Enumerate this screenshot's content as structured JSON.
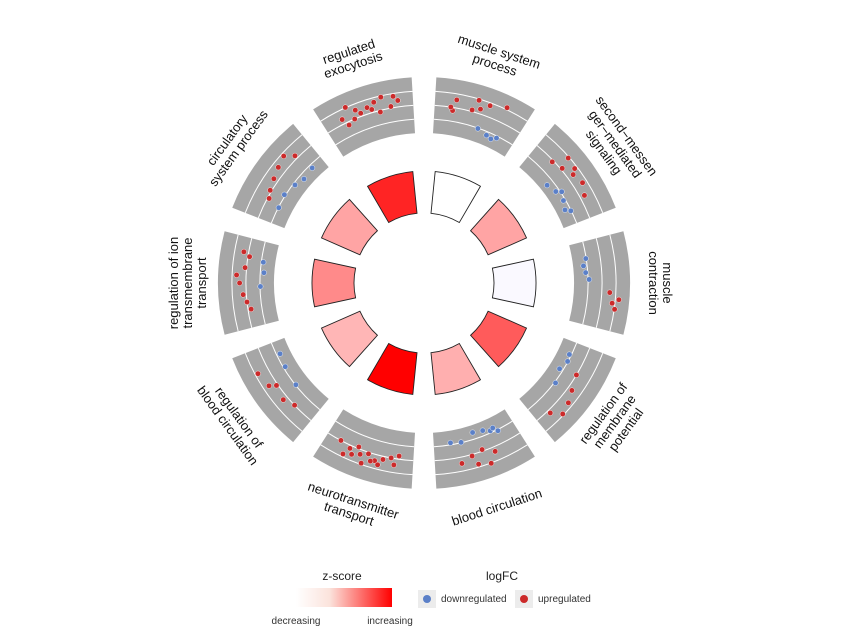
{
  "chart_data": {
    "type": "circular-go-plot",
    "terms": [
      {
        "label_lines": [
          "muscle system",
          "process"
        ],
        "zscore": 0.3,
        "points": [
          {
            "r": 0.3,
            "p": 0.15,
            "d": "up"
          },
          {
            "r": 0.5,
            "p": 0.12,
            "d": "up"
          },
          {
            "r": 0.6,
            "p": 0.4,
            "d": "up"
          },
          {
            "r": 0.8,
            "p": 0.5,
            "d": "up"
          },
          {
            "r": 1.0,
            "p": 0.18,
            "d": "up"
          },
          {
            "r": 1.2,
            "p": 0.6,
            "d": "up"
          },
          {
            "r": 1.3,
            "p": 0.45,
            "d": "up"
          },
          {
            "r": 1.5,
            "p": 0.8,
            "d": "up"
          },
          {
            "r": -0.4,
            "p": 0.55,
            "d": "down"
          },
          {
            "r": -0.6,
            "p": 0.7,
            "d": "down"
          },
          {
            "r": -0.7,
            "p": 0.78,
            "d": "down"
          },
          {
            "r": -0.5,
            "p": 0.85,
            "d": "down"
          }
        ]
      },
      {
        "label_lines": [
          "second−messen",
          "ger−mediated",
          "signaling"
        ],
        "zscore": 0.55,
        "points": [
          {
            "r": 0.4,
            "p": 0.2,
            "d": "up"
          },
          {
            "r": 0.6,
            "p": 0.35,
            "d": "up"
          },
          {
            "r": 0.9,
            "p": 0.5,
            "d": "up"
          },
          {
            "r": 1.1,
            "p": 0.65,
            "d": "up"
          },
          {
            "r": 1.3,
            "p": 0.3,
            "d": "up"
          },
          {
            "r": 1.2,
            "p": 0.45,
            "d": "up"
          },
          {
            "r": 0.8,
            "p": 0.8,
            "d": "up"
          },
          {
            "r": -0.3,
            "p": 0.6,
            "d": "down"
          },
          {
            "r": -0.5,
            "p": 0.72,
            "d": "down"
          },
          {
            "r": -0.7,
            "p": 0.85,
            "d": "down"
          },
          {
            "r": -0.6,
            "p": 0.55,
            "d": "down"
          },
          {
            "r": -0.4,
            "p": 0.9,
            "d": "down"
          },
          {
            "r": -0.8,
            "p": 0.4,
            "d": "down"
          }
        ]
      },
      {
        "label_lines": [
          "muscle",
          "contraction"
        ],
        "zscore": 0.25,
        "points": [
          {
            "r": 1.2,
            "p": 0.75,
            "d": "up"
          },
          {
            "r": 1.4,
            "p": 0.82,
            "d": "up"
          },
          {
            "r": 1.6,
            "p": 0.7,
            "d": "up"
          },
          {
            "r": 1.0,
            "p": 0.62,
            "d": "up"
          },
          {
            "r": -0.4,
            "p": 0.15,
            "d": "down"
          },
          {
            "r": -0.6,
            "p": 0.25,
            "d": "down"
          },
          {
            "r": -0.5,
            "p": 0.35,
            "d": "down"
          },
          {
            "r": -0.3,
            "p": 0.45,
            "d": "down"
          }
        ]
      },
      {
        "label_lines": [
          "regulation of",
          "membrane",
          "potential"
        ],
        "zscore": 0.75,
        "points": [
          {
            "r": 0.5,
            "p": 0.3,
            "d": "up"
          },
          {
            "r": 0.8,
            "p": 0.5,
            "d": "up"
          },
          {
            "r": 1.1,
            "p": 0.65,
            "d": "up"
          },
          {
            "r": 1.3,
            "p": 0.8,
            "d": "up"
          },
          {
            "r": 0.7,
            "p": 0.9,
            "d": "up"
          },
          {
            "r": -0.4,
            "p": 0.2,
            "d": "down"
          },
          {
            "r": -0.6,
            "p": 0.35,
            "d": "down"
          },
          {
            "r": -0.3,
            "p": 0.55,
            "d": "down"
          },
          {
            "r": -0.5,
            "p": 0.1,
            "d": "down"
          }
        ]
      },
      {
        "label_lines": [
          "blood circulation"
        ],
        "zscore": 0.52,
        "points": [
          {
            "r": 0.4,
            "p": 0.45,
            "d": "up"
          },
          {
            "r": 0.6,
            "p": 0.6,
            "d": "up"
          },
          {
            "r": 0.9,
            "p": 0.75,
            "d": "up"
          },
          {
            "r": 1.2,
            "p": 0.55,
            "d": "up"
          },
          {
            "r": 1.4,
            "p": 0.4,
            "d": "up"
          },
          {
            "r": 0.8,
            "p": 0.3,
            "d": "up"
          },
          {
            "r": -0.3,
            "p": 0.15,
            "d": "down"
          },
          {
            "r": -0.5,
            "p": 0.25,
            "d": "down"
          },
          {
            "r": -0.7,
            "p": 0.35,
            "d": "down"
          },
          {
            "r": -0.6,
            "p": 0.2,
            "d": "down"
          },
          {
            "r": -0.4,
            "p": 0.7,
            "d": "down"
          },
          {
            "r": -0.8,
            "p": 0.5,
            "d": "down"
          },
          {
            "r": -0.5,
            "p": 0.85,
            "d": "down"
          }
        ]
      },
      {
        "label_lines": [
          "neurotransmitter",
          "transport"
        ],
        "zscore": 1.0,
        "points": [
          {
            "r": 0.3,
            "p": 0.1,
            "d": "up"
          },
          {
            "r": 0.5,
            "p": 0.2,
            "d": "up"
          },
          {
            "r": 0.7,
            "p": 0.3,
            "d": "up"
          },
          {
            "r": 0.9,
            "p": 0.4,
            "d": "up"
          },
          {
            "r": 0.6,
            "p": 0.5,
            "d": "up"
          },
          {
            "r": 0.8,
            "p": 0.6,
            "d": "up"
          },
          {
            "r": 1.0,
            "p": 0.7,
            "d": "up"
          },
          {
            "r": 1.2,
            "p": 0.8,
            "d": "up"
          },
          {
            "r": 0.4,
            "p": 0.65,
            "d": "up"
          },
          {
            "r": 1.1,
            "p": 0.35,
            "d": "up"
          },
          {
            "r": 1.3,
            "p": 0.55,
            "d": "up"
          },
          {
            "r": 0.5,
            "p": 0.9,
            "d": "up"
          },
          {
            "r": 0.7,
            "p": 0.75,
            "d": "up"
          },
          {
            "r": 0.9,
            "p": 0.15,
            "d": "up"
          },
          {
            "r": 1.0,
            "p": 0.45,
            "d": "up"
          }
        ]
      },
      {
        "label_lines": [
          "regulation of",
          "blood circulation"
        ],
        "zscore": 0.5,
        "points": [
          {
            "r": 0.5,
            "p": 0.2,
            "d": "up"
          },
          {
            "r": 0.8,
            "p": 0.35,
            "d": "up"
          },
          {
            "r": 1.0,
            "p": 0.6,
            "d": "up"
          },
          {
            "r": 1.2,
            "p": 0.8,
            "d": "up"
          },
          {
            "r": 0.6,
            "p": 0.55,
            "d": "up"
          },
          {
            "r": -0.4,
            "p": 0.4,
            "d": "down"
          },
          {
            "r": -0.5,
            "p": 0.7,
            "d": "down"
          },
          {
            "r": -0.6,
            "p": 0.9,
            "d": "down"
          }
        ]
      },
      {
        "label_lines": [
          "regulation of ion",
          "transmembrane",
          "transport"
        ],
        "zscore": 0.62,
        "points": [
          {
            "r": 0.3,
            "p": 0.15,
            "d": "up"
          },
          {
            "r": 0.5,
            "p": 0.25,
            "d": "up"
          },
          {
            "r": 0.7,
            "p": 0.35,
            "d": "up"
          },
          {
            "r": 0.9,
            "p": 0.5,
            "d": "up"
          },
          {
            "r": 1.1,
            "p": 0.6,
            "d": "up"
          },
          {
            "r": 0.6,
            "p": 0.7,
            "d": "up"
          },
          {
            "r": 0.4,
            "p": 0.85,
            "d": "up"
          },
          {
            "r": 0.8,
            "p": 0.9,
            "d": "up"
          },
          {
            "r": -0.4,
            "p": 0.45,
            "d": "down"
          },
          {
            "r": -0.6,
            "p": 0.65,
            "d": "down"
          },
          {
            "r": -0.5,
            "p": 0.8,
            "d": "down"
          }
        ]
      },
      {
        "label_lines": [
          "circulatory",
          "system process"
        ],
        "zscore": 0.55,
        "points": [
          {
            "r": 0.4,
            "p": 0.2,
            "d": "up"
          },
          {
            "r": 0.6,
            "p": 0.3,
            "d": "up"
          },
          {
            "r": 0.8,
            "p": 0.45,
            "d": "up"
          },
          {
            "r": 1.0,
            "p": 0.6,
            "d": "up"
          },
          {
            "r": 1.2,
            "p": 0.75,
            "d": "up"
          },
          {
            "r": 0.7,
            "p": 0.85,
            "d": "up"
          },
          {
            "r": -0.3,
            "p": 0.35,
            "d": "down"
          },
          {
            "r": -0.5,
            "p": 0.55,
            "d": "down"
          },
          {
            "r": -0.7,
            "p": 0.7,
            "d": "down"
          },
          {
            "r": -0.4,
            "p": 0.15,
            "d": "down"
          },
          {
            "r": -0.6,
            "p": 0.9,
            "d": "down"
          }
        ]
      },
      {
        "label_lines": [
          "regulated",
          "exocytosis"
        ],
        "zscore": 0.9,
        "points": [
          {
            "r": 0.3,
            "p": 0.2,
            "d": "up"
          },
          {
            "r": 0.5,
            "p": 0.3,
            "d": "up"
          },
          {
            "r": 0.7,
            "p": 0.4,
            "d": "up"
          },
          {
            "r": 0.9,
            "p": 0.5,
            "d": "up"
          },
          {
            "r": 1.1,
            "p": 0.6,
            "d": "up"
          },
          {
            "r": 1.3,
            "p": 0.7,
            "d": "up"
          },
          {
            "r": 0.6,
            "p": 0.8,
            "d": "up"
          },
          {
            "r": 0.8,
            "p": 0.15,
            "d": "up"
          },
          {
            "r": 1.0,
            "p": 0.35,
            "d": "up"
          },
          {
            "r": 1.2,
            "p": 0.85,
            "d": "up"
          },
          {
            "r": 0.4,
            "p": 0.65,
            "d": "up"
          },
          {
            "r": 0.9,
            "p": 0.9,
            "d": "up"
          },
          {
            "r": 1.4,
            "p": 0.25,
            "d": "up"
          },
          {
            "r": 0.7,
            "p": 0.55,
            "d": "up"
          }
        ]
      }
    ],
    "legend": {
      "zscore_title": "z-score",
      "zscore_low": "decreasing",
      "zscore_high": "increasing",
      "logfc_title": "logFC",
      "down_label": "downregulated",
      "up_label": "upregulated"
    },
    "colors": {
      "up": "#cc2a2a",
      "down": "#5b80c8",
      "zscore_low": "#e0dbff",
      "zscore_mid": "#ffffff",
      "zscore_high": "#ff0000",
      "panel": "#a6a6a6"
    }
  }
}
